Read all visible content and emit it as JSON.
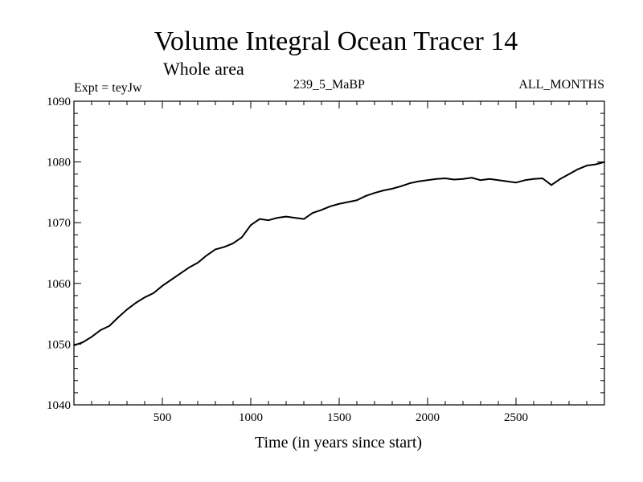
{
  "header": {
    "title": "Volume Integral Ocean Tracer 14",
    "subtitle": "Whole area",
    "experiment": "Expt = teyJw",
    "run": "239_5_MaBP",
    "period": "ALL_MONTHS"
  },
  "chart_data": {
    "type": "line",
    "title": "Volume Integral Ocean Tracer 14",
    "subtitle": "Whole area",
    "xlabel": "Time (in years since start)",
    "ylabel": "",
    "xlim": [
      0,
      3000
    ],
    "ylim": [
      1040,
      1090
    ],
    "x_ticks": [
      500,
      1000,
      1500,
      2000,
      2500
    ],
    "x_tick_labels": [
      "500",
      "1000",
      "1500",
      "2000",
      "2500"
    ],
    "y_ticks": [
      1040,
      1050,
      1060,
      1070,
      1080,
      1090
    ],
    "y_tick_labels": [
      "1040",
      "1050",
      "1060",
      "1070",
      "1080",
      "1090"
    ],
    "grid": false,
    "legend": "none",
    "series": [
      {
        "name": "Ocean Tracer 14",
        "color": "#000000",
        "x": [
          0,
          50,
          100,
          150,
          200,
          250,
          300,
          350,
          400,
          450,
          500,
          550,
          600,
          650,
          700,
          750,
          800,
          850,
          900,
          950,
          1000,
          1050,
          1100,
          1150,
          1200,
          1250,
          1300,
          1350,
          1400,
          1450,
          1500,
          1550,
          1600,
          1650,
          1700,
          1750,
          1800,
          1850,
          1900,
          1950,
          2000,
          2050,
          2100,
          2150,
          2200,
          2250,
          2300,
          2350,
          2400,
          2450,
          2500,
          2550,
          2600,
          2650,
          2700,
          2750,
          2800,
          2850,
          2900,
          2950,
          3000
        ],
        "values": [
          1049.8,
          1050.3,
          1051.2,
          1052.3,
          1053.0,
          1054.4,
          1055.7,
          1056.8,
          1057.7,
          1058.4,
          1059.6,
          1060.6,
          1061.6,
          1062.6,
          1063.4,
          1064.6,
          1065.6,
          1066.0,
          1066.6,
          1067.6,
          1069.6,
          1070.6,
          1070.4,
          1070.8,
          1071.0,
          1070.8,
          1070.6,
          1071.6,
          1072.1,
          1072.7,
          1073.1,
          1073.4,
          1073.7,
          1074.4,
          1074.9,
          1075.3,
          1075.6,
          1076.0,
          1076.5,
          1076.8,
          1077.0,
          1077.2,
          1077.3,
          1077.1,
          1077.2,
          1077.4,
          1077.0,
          1077.2,
          1077.0,
          1076.8,
          1076.6,
          1077.0,
          1077.2,
          1077.3,
          1076.2,
          1077.2,
          1078.0,
          1078.8,
          1079.4,
          1079.6,
          1080.0
        ]
      }
    ]
  }
}
